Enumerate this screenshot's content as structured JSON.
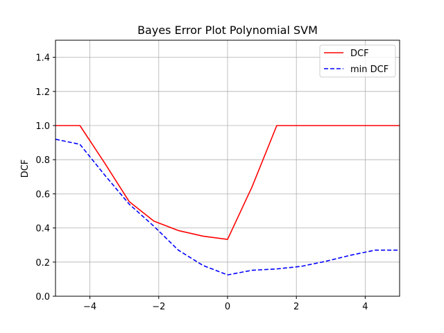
{
  "chart_data": {
    "type": "line",
    "title": "Bayes Error Plot Polynomial SVM",
    "xlabel": "",
    "ylabel": "DCF",
    "xlim": [
      -5,
      5
    ],
    "ylim": [
      0,
      1.5
    ],
    "xticks": [
      -4,
      -2,
      0,
      2,
      4
    ],
    "xtick_labels": [
      "−4",
      "−2",
      "0",
      "2",
      "4"
    ],
    "yticks": [
      0.0,
      0.2,
      0.4,
      0.6,
      0.8,
      1.0,
      1.2,
      1.4
    ],
    "ytick_labels": [
      "0.0",
      "0.2",
      "0.4",
      "0.6",
      "0.8",
      "1.0",
      "1.2",
      "1.4"
    ],
    "grid": true,
    "legend_position": "top-right",
    "series": [
      {
        "name": "DCF",
        "color": "#ff0000",
        "style": "solid",
        "x": [
          -5,
          -4.29,
          -3.57,
          -2.86,
          -2.14,
          -1.43,
          -0.71,
          0,
          0.71,
          1.43,
          2.14,
          2.86,
          3.57,
          4.29,
          5
        ],
        "y": [
          1.0,
          1.0,
          0.78,
          0.555,
          0.44,
          0.385,
          0.352,
          0.333,
          0.64,
          1.0,
          1.0,
          1.0,
          1.0,
          1.0,
          1.0
        ]
      },
      {
        "name": "min DCF",
        "color": "#0000ff",
        "style": "dashed",
        "x": [
          -5,
          -4.29,
          -3.57,
          -2.86,
          -2.14,
          -1.43,
          -0.71,
          0,
          0.71,
          1.43,
          2.14,
          2.86,
          3.57,
          4.29,
          5
        ],
        "y": [
          0.92,
          0.89,
          0.71,
          0.54,
          0.41,
          0.27,
          0.18,
          0.125,
          0.152,
          0.16,
          0.175,
          0.205,
          0.24,
          0.27,
          0.27
        ]
      }
    ]
  }
}
